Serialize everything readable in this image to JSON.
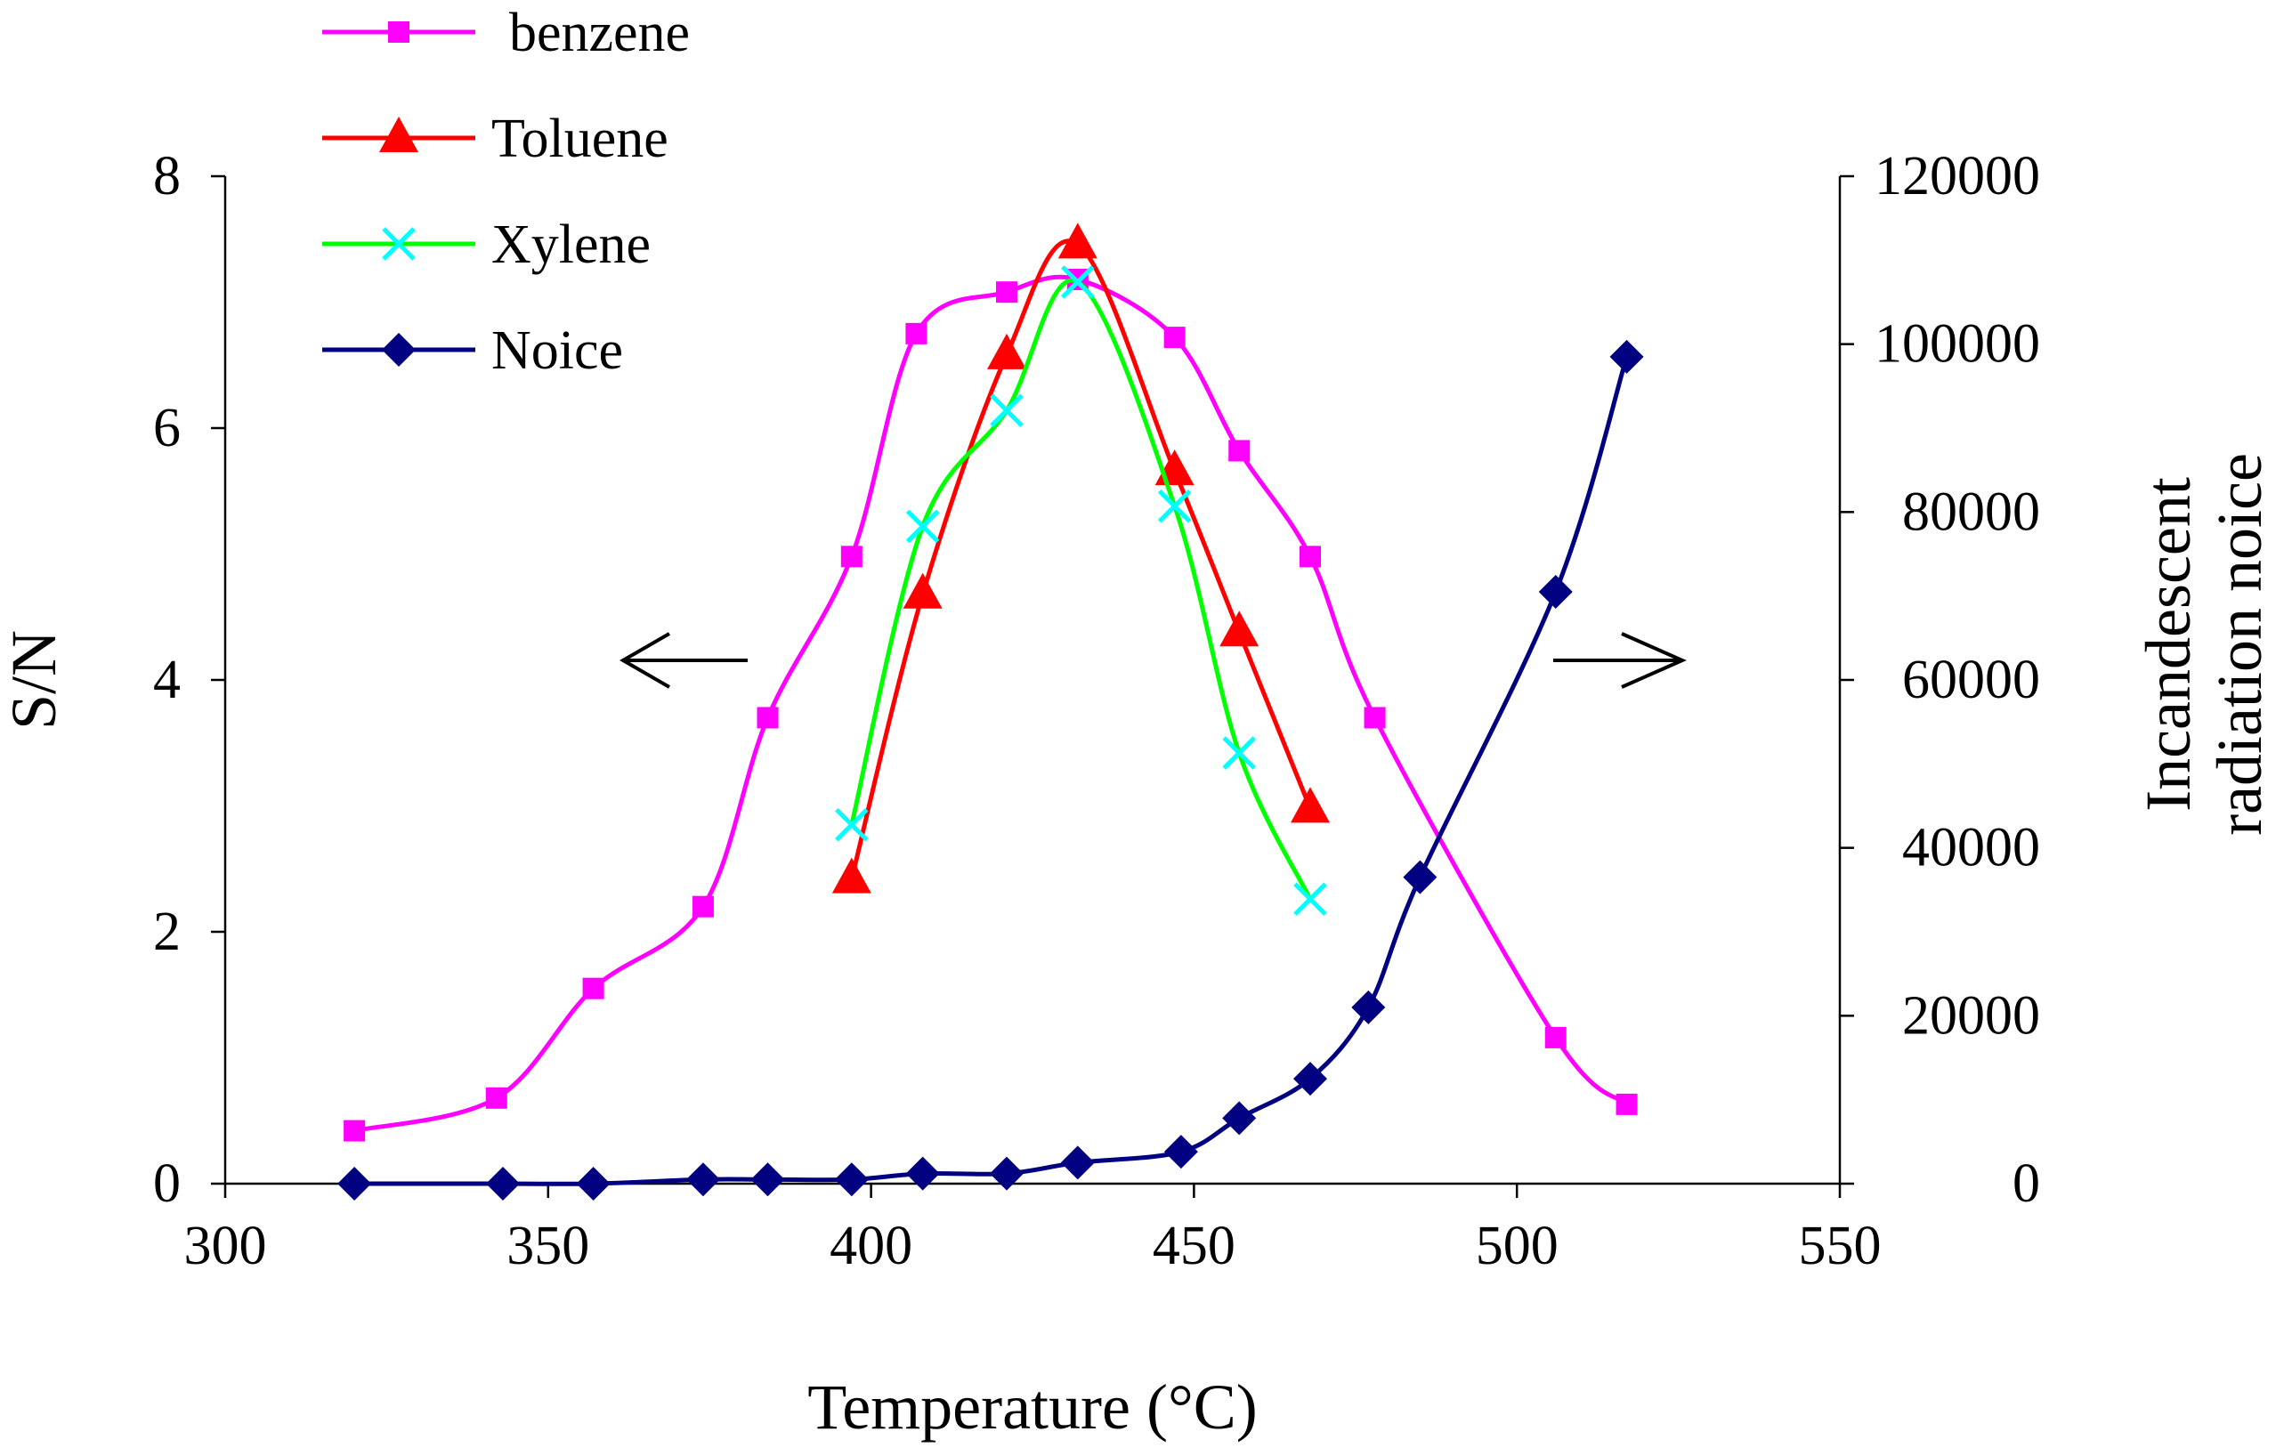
{
  "chart_data": {
    "type": "line",
    "title": "",
    "xlabel": "Temperature (°C)",
    "ylabel": "S/N",
    "y2label": [
      "Incandescent",
      "radiation noice"
    ],
    "xlim": [
      300,
      550
    ],
    "ylim": [
      0,
      8
    ],
    "y2lim": [
      0,
      120000
    ],
    "xticks": [
      "300",
      "350",
      "400",
      "450",
      "500",
      "550"
    ],
    "yticks": [
      "0",
      "2",
      "4",
      "6",
      "8"
    ],
    "y2ticks": [
      "0",
      "20000",
      "40000",
      "60000",
      "80000",
      "100000",
      "120000"
    ],
    "legend_position": "top-left",
    "annotations": [
      {
        "name": "left-arrow",
        "meaning": "S/N curves read on left axis"
      },
      {
        "name": "right-arrow",
        "meaning": "Noise curve read on right axis"
      }
    ],
    "series": [
      {
        "name": "benzene",
        "axis": "left",
        "color": "#ff00ff",
        "marker": "square",
        "x": [
          320,
          342,
          357,
          374,
          384,
          397,
          407,
          421,
          432,
          447,
          457,
          468,
          478,
          506,
          517
        ],
        "y": [
          0.42,
          0.68,
          1.55,
          2.2,
          3.7,
          4.98,
          6.75,
          7.08,
          7.18,
          6.72,
          5.82,
          4.98,
          3.7,
          1.16,
          0.63
        ]
      },
      {
        "name": "Toluene",
        "axis": "left",
        "color": "#ff0000",
        "marker": "triangle",
        "x": [
          397,
          408,
          421,
          432,
          447,
          457,
          468
        ],
        "y": [
          2.42,
          4.68,
          6.58,
          7.46,
          5.66,
          4.38,
          2.98
        ]
      },
      {
        "name": "Xylene",
        "axis": "left",
        "color": "#00ff00",
        "markerColor": "#00ffff",
        "marker": "x",
        "x": [
          397,
          408,
          421,
          432,
          447,
          457,
          468
        ],
        "y": [
          2.85,
          5.22,
          6.14,
          7.16,
          5.38,
          3.42,
          2.26
        ]
      },
      {
        "name": "Noice",
        "axis": "right",
        "color": "#000080",
        "marker": "diamond",
        "x": [
          320,
          343,
          357,
          374,
          384,
          397,
          408,
          421,
          432,
          448,
          457,
          468,
          477,
          485,
          506,
          517
        ],
        "y": [
          0,
          0,
          0,
          500,
          500,
          500,
          1200,
          1200,
          2500,
          3800,
          7800,
          12500,
          21000,
          36500,
          70500,
          98500
        ]
      }
    ]
  }
}
